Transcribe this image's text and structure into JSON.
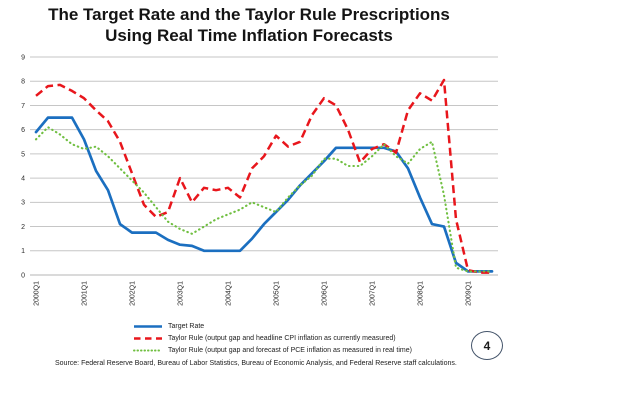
{
  "slide": {
    "title_line1": "The Target Rate and the Taylor Rule Prescriptions",
    "title_line2": "Using Real Time Inflation Forecasts",
    "source": "Source:  Federal Reserve Board, Bureau of Labor Statistics, Bureau of Economic Analysis, and Federal Reserve staff calculations.",
    "page_number": "4"
  },
  "chart_data": {
    "type": "line",
    "title": "The Target Rate and the Taylor Rule Prescriptions Using Real Time Inflation Forecasts",
    "xlabel": "",
    "ylabel": "",
    "ylim": [
      0,
      9
    ],
    "y_ticks": [
      0,
      1,
      2,
      3,
      4,
      5,
      6,
      7,
      8,
      9
    ],
    "grid": "horizontal",
    "legend_position": "bottom",
    "x_tick_interval": 4,
    "x": [
      "2000Q1",
      "2000Q2",
      "2000Q3",
      "2000Q4",
      "2001Q1",
      "2001Q2",
      "2001Q3",
      "2001Q4",
      "2002Q1",
      "2002Q2",
      "2002Q3",
      "2002Q4",
      "2003Q1",
      "2003Q2",
      "2003Q3",
      "2003Q4",
      "2004Q1",
      "2004Q2",
      "2004Q3",
      "2004Q4",
      "2005Q1",
      "2005Q2",
      "2005Q3",
      "2005Q4",
      "2006Q1",
      "2006Q2",
      "2006Q3",
      "2006Q4",
      "2007Q1",
      "2007Q2",
      "2007Q3",
      "2007Q4",
      "2008Q1",
      "2008Q2",
      "2008Q3",
      "2008Q4",
      "2009Q1",
      "2009Q2",
      "2009Q3"
    ],
    "x_tick_labels": [
      "2000Q1",
      "2001Q1",
      "2002Q1",
      "2003Q1",
      "2004Q1",
      "2005Q1",
      "2006Q1",
      "2007Q1",
      "2008Q1",
      "2009Q1"
    ],
    "series": [
      {
        "name": "Target Rate",
        "style": "solid",
        "color": "#1b6fc0",
        "values": [
          5.9,
          6.5,
          6.5,
          6.5,
          5.6,
          4.3,
          3.5,
          2.1,
          1.75,
          1.75,
          1.75,
          1.45,
          1.25,
          1.2,
          1.0,
          1.0,
          1.0,
          1.0,
          1.5,
          2.1,
          2.6,
          3.1,
          3.7,
          4.2,
          4.7,
          5.25,
          5.25,
          5.25,
          5.25,
          5.25,
          5.1,
          4.4,
          3.2,
          2.1,
          2.0,
          0.5,
          0.15,
          0.15,
          0.15
        ]
      },
      {
        "name": "Taylor Rule (output gap and headline CPI inflation as currently measured)",
        "style": "dashed",
        "color": "#e8161c",
        "values": [
          7.4,
          7.8,
          7.85,
          7.6,
          7.3,
          6.8,
          6.35,
          5.5,
          4.2,
          2.9,
          2.4,
          2.6,
          4.0,
          3.0,
          3.6,
          3.5,
          3.6,
          3.2,
          4.4,
          4.9,
          5.75,
          5.3,
          5.5,
          6.6,
          7.3,
          7.0,
          6.0,
          4.65,
          5.2,
          5.4,
          5.05,
          6.8,
          7.5,
          7.2,
          8.05,
          2.3,
          0.2,
          0.1,
          0.1
        ]
      },
      {
        "name": "Taylor Rule (output gap and forecast of PCE inflation as measured in real time)",
        "style": "dotted",
        "color": "#70bf41",
        "values": [
          5.6,
          6.1,
          5.8,
          5.4,
          5.2,
          5.3,
          4.9,
          4.4,
          3.9,
          3.4,
          2.8,
          2.2,
          1.9,
          1.7,
          2.0,
          2.3,
          2.5,
          2.7,
          3.0,
          2.8,
          2.6,
          3.2,
          3.7,
          4.1,
          4.8,
          4.8,
          4.5,
          4.5,
          4.9,
          5.4,
          4.9,
          4.6,
          5.2,
          5.5,
          3.3,
          0.3,
          0.15,
          0.15,
          0.15
        ]
      }
    ]
  }
}
